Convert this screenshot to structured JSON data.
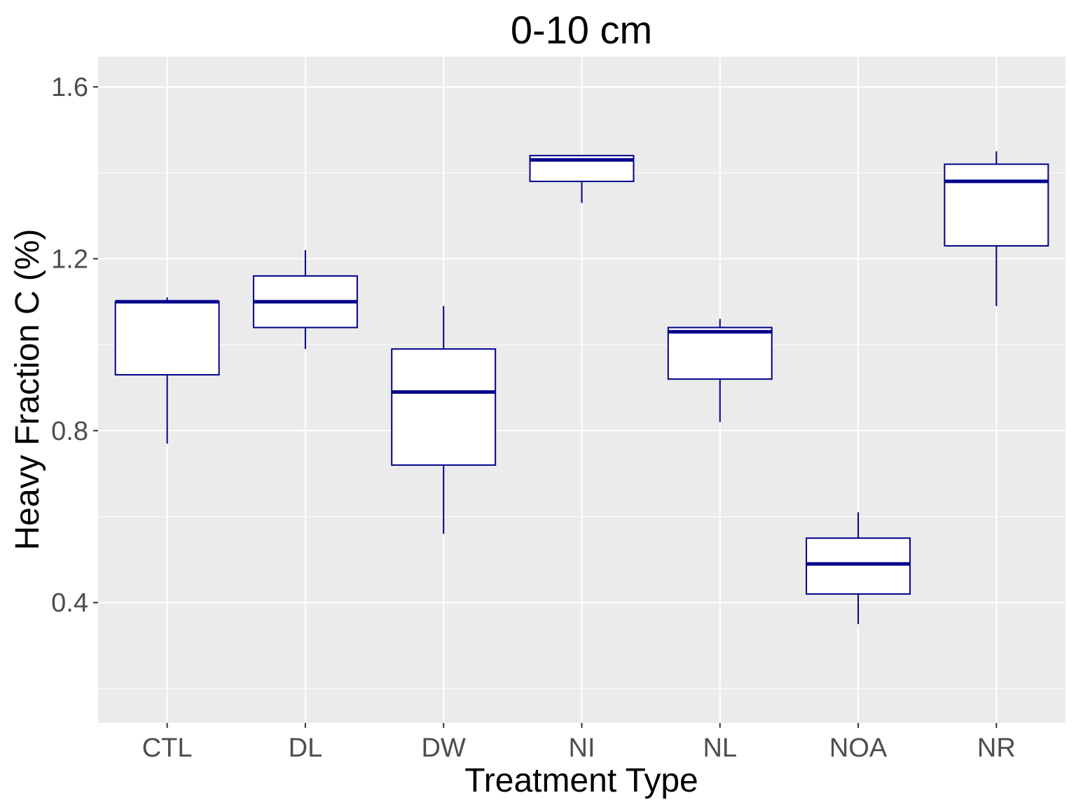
{
  "chart_data": {
    "type": "boxplot",
    "title": "0-10 cm",
    "xlabel": "Treatment Type",
    "ylabel": "Heavy Fraction C (%)",
    "ylim": [
      0.12,
      1.67
    ],
    "yticks": [
      0.4,
      0.8,
      1.2,
      1.6
    ],
    "grid": true,
    "categories": [
      "CTL",
      "DL",
      "DW",
      "NI",
      "NL",
      "NOA",
      "NR"
    ],
    "boxes": [
      {
        "category": "CTL",
        "min": 0.77,
        "q1": 0.93,
        "median": 1.1,
        "q3": 1.1,
        "max": 1.11
      },
      {
        "category": "DL",
        "min": 0.99,
        "q1": 1.04,
        "median": 1.1,
        "q3": 1.16,
        "max": 1.22
      },
      {
        "category": "DW",
        "min": 0.56,
        "q1": 0.72,
        "median": 0.89,
        "q3": 0.99,
        "max": 1.09
      },
      {
        "category": "NI",
        "min": 1.33,
        "q1": 1.38,
        "median": 1.43,
        "q3": 1.44,
        "max": 1.44
      },
      {
        "category": "NL",
        "min": 0.82,
        "q1": 0.92,
        "median": 1.03,
        "q3": 1.04,
        "max": 1.06
      },
      {
        "category": "NOA",
        "min": 0.35,
        "q1": 0.42,
        "median": 0.49,
        "q3": 0.55,
        "max": 0.61
      },
      {
        "category": "NR",
        "min": 1.09,
        "q1": 1.23,
        "median": 1.38,
        "q3": 1.42,
        "max": 1.45
      }
    ],
    "colors": {
      "panel_background": "#ebebeb",
      "grid": "#ffffff",
      "box_outline": "#00008b",
      "box_fill": "#ffffff"
    }
  }
}
